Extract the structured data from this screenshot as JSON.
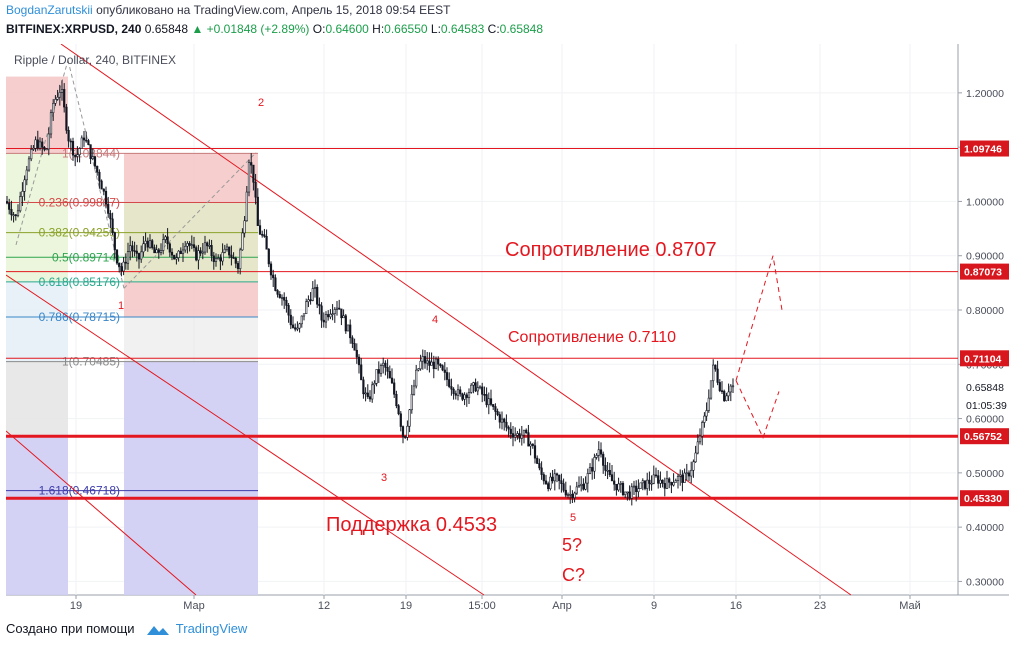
{
  "header": {
    "author": "BogdanZarutskii",
    "published": "опубликовано на TradingView.com, Апрель 15, 2018 09:54 EEST",
    "symbol": "BITFINEX:XRPUSD, 240",
    "last": "0.65848",
    "change": "▲ +0.01848 (+2.89%)",
    "o_label": "O:",
    "o_value": "0.64600",
    "h_label": "H:",
    "h_value": "0.66550",
    "l_label": "L:",
    "l_value": "0.64583",
    "c_label": "C:",
    "c_value": "0.65848"
  },
  "footer": {
    "created_with": "Создано при помощи",
    "brand": "TradingView"
  },
  "colors": {
    "up": "#1b9e4a",
    "line_red": "#e3171f",
    "fib_red": "#f4c5c5",
    "fib_blue": "#cfcdf3",
    "brand": "#2f8fd9"
  },
  "chart_data": {
    "type": "candlestick",
    "title": "Ripple / Dollar, 240, BITFINEX",
    "x_ticks": [
      "19",
      "Мар",
      "12",
      "19",
      "15:00",
      "Апр",
      "9",
      "16",
      "23",
      "Май"
    ],
    "y_ticks": [
      "1.20000",
      "1.10000",
      "1.00000",
      "0.90000",
      "0.80000",
      "0.70000",
      "0.60000",
      "0.50000",
      "0.40000",
      "0.30000"
    ],
    "ylim": [
      0.275,
      1.29
    ],
    "last_price": "0.65848",
    "countdown": "01:05:39",
    "price_tags": [
      {
        "label": "1.09746",
        "value": 1.09746
      },
      {
        "label": "0.87073",
        "value": 0.87073
      },
      {
        "label": "0.71104",
        "value": 0.71104
      },
      {
        "label": "0.56752",
        "value": 0.56752
      },
      {
        "label": "0.45330",
        "value": 0.4533
      }
    ],
    "annotations": [
      {
        "text": "Сопротивление 0.8707",
        "key": "res1"
      },
      {
        "text": "Сопротивление 0.7110",
        "key": "res2"
      },
      {
        "text": "Поддержка 0.4533",
        "key": "sup"
      },
      {
        "text": "5?",
        "key": "q5"
      },
      {
        "text": "C?",
        "key": "qc"
      }
    ],
    "wave_labels": [
      "1",
      "2",
      "3",
      "4",
      "5"
    ],
    "fib_levels": [
      {
        "label": "1(1.08844)",
        "value": 1.08844
      },
      {
        "label": "0.236(0.99807)",
        "value": 0.99807
      },
      {
        "label": "0.382(0.94255)",
        "value": 0.94255
      },
      {
        "label": "0.5(0.89714)",
        "value": 0.89714
      },
      {
        "label": "0.618(0.85176)",
        "value": 0.85176
      },
      {
        "label": "0.786(0.78715)",
        "value": 0.78715
      },
      {
        "label": "1(0.70485)",
        "value": 0.70485
      },
      {
        "label": "1.618(0.46718)",
        "value": 0.46718
      }
    ],
    "price_path": [
      [
        0,
        1.0
      ],
      [
        10,
        0.97
      ],
      [
        20,
        1.06
      ],
      [
        30,
        1.11
      ],
      [
        40,
        1.09
      ],
      [
        47,
        1.18
      ],
      [
        55,
        1.21
      ],
      [
        62,
        1.12
      ],
      [
        70,
        1.08
      ],
      [
        78,
        1.12
      ],
      [
        86,
        1.08
      ],
      [
        94,
        1.04
      ],
      [
        102,
        0.99
      ],
      [
        110,
        0.9
      ],
      [
        116,
        0.87
      ],
      [
        124,
        0.92
      ],
      [
        132,
        0.89
      ],
      [
        140,
        0.93
      ],
      [
        150,
        0.9
      ],
      [
        160,
        0.93
      ],
      [
        170,
        0.89
      ],
      [
        180,
        0.93
      ],
      [
        190,
        0.9
      ],
      [
        200,
        0.92
      ],
      [
        210,
        0.89
      ],
      [
        222,
        0.91
      ],
      [
        232,
        0.88
      ],
      [
        238,
        0.96
      ],
      [
        243,
        1.08
      ],
      [
        247,
        1.05
      ],
      [
        252,
        0.95
      ],
      [
        258,
        0.93
      ],
      [
        264,
        0.88
      ],
      [
        270,
        0.84
      ],
      [
        278,
        0.82
      ],
      [
        286,
        0.77
      ],
      [
        292,
        0.76
      ],
      [
        300,
        0.81
      ],
      [
        308,
        0.84
      ],
      [
        316,
        0.78
      ],
      [
        324,
        0.8
      ],
      [
        332,
        0.81
      ],
      [
        340,
        0.77
      ],
      [
        348,
        0.74
      ],
      [
        356,
        0.66
      ],
      [
        362,
        0.63
      ],
      [
        370,
        0.68
      ],
      [
        378,
        0.7
      ],
      [
        386,
        0.66
      ],
      [
        392,
        0.62
      ],
      [
        398,
        0.56
      ],
      [
        404,
        0.62
      ],
      [
        410,
        0.68
      ],
      [
        416,
        0.71
      ],
      [
        422,
        0.7
      ],
      [
        430,
        0.7
      ],
      [
        438,
        0.68
      ],
      [
        446,
        0.66
      ],
      [
        454,
        0.64
      ],
      [
        462,
        0.65
      ],
      [
        470,
        0.66
      ],
      [
        478,
        0.64
      ],
      [
        486,
        0.62
      ],
      [
        494,
        0.6
      ],
      [
        502,
        0.58
      ],
      [
        510,
        0.57
      ],
      [
        518,
        0.57
      ],
      [
        526,
        0.55
      ],
      [
        534,
        0.5
      ],
      [
        542,
        0.48
      ],
      [
        550,
        0.49
      ],
      [
        558,
        0.47
      ],
      [
        564,
        0.46
      ],
      [
        570,
        0.47
      ],
      [
        578,
        0.48
      ],
      [
        586,
        0.51
      ],
      [
        594,
        0.55
      ],
      [
        600,
        0.5
      ],
      [
        608,
        0.48
      ],
      [
        616,
        0.47
      ],
      [
        622,
        0.46
      ],
      [
        630,
        0.47
      ],
      [
        640,
        0.48
      ],
      [
        650,
        0.49
      ],
      [
        660,
        0.48
      ],
      [
        670,
        0.49
      ],
      [
        680,
        0.49
      ],
      [
        688,
        0.52
      ],
      [
        694,
        0.57
      ],
      [
        700,
        0.61
      ],
      [
        704,
        0.66
      ],
      [
        708,
        0.7
      ],
      [
        712,
        0.67
      ],
      [
        718,
        0.64
      ],
      [
        724,
        0.66
      ],
      [
        728,
        0.658
      ]
    ]
  }
}
